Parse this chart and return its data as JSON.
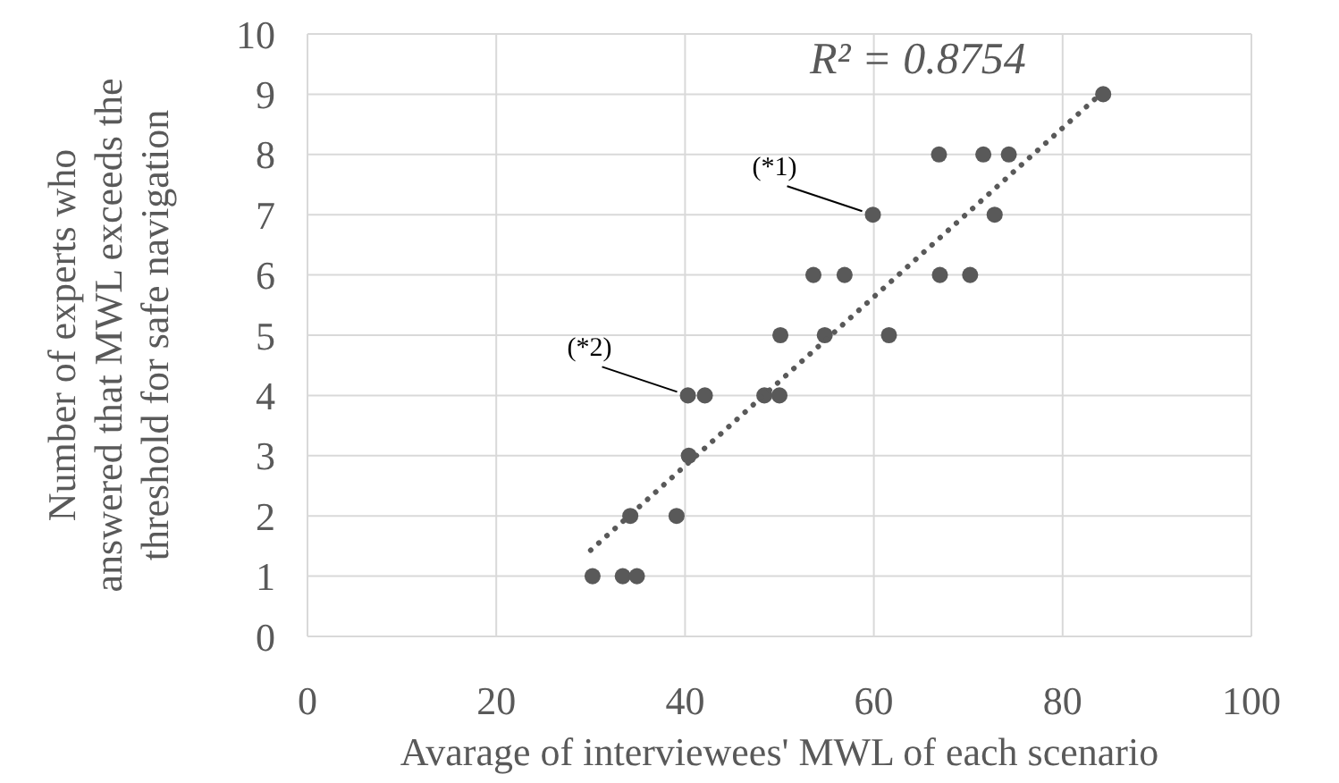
{
  "chart_data": {
    "type": "scatter",
    "xlabel": "Avarage of interviewees' MWL of each scenario",
    "ylabel": "Number of experts who answered that MWL exceeds the threshold for safe navigation",
    "xlim": [
      0,
      100
    ],
    "xticks": [
      0,
      20,
      40,
      60,
      80,
      100
    ],
    "ylim": [
      0,
      10
    ],
    "yticks": [
      0,
      1,
      2,
      3,
      4,
      5,
      6,
      7,
      8,
      9,
      10
    ],
    "grid": true,
    "marker": "circle",
    "series": [
      {
        "type": "scatter",
        "color": "#595959",
        "x": [
          30.2,
          33.4,
          34.9,
          34.2,
          39.1,
          40.4,
          40.3,
          42.1,
          48.4,
          50.0,
          50.1,
          54.8,
          61.6,
          53.6,
          56.9,
          67.0,
          70.2,
          59.9,
          72.8,
          66.9,
          71.6,
          74.3,
          84.3
        ],
        "values": [
          1,
          1,
          1,
          2,
          2,
          3,
          4,
          4,
          4,
          4,
          5,
          5,
          5,
          6,
          6,
          6,
          6,
          7,
          7,
          8,
          8,
          8,
          9
        ]
      },
      {
        "type": "line",
        "color": "#595959",
        "line_style": "dotted",
        "marker": "none",
        "x": [
          30,
          84
        ],
        "values": [
          1.43,
          9.0
        ]
      }
    ],
    "annotations": [
      {
        "text": "(*1)",
        "x": 59.9,
        "y": 7
      },
      {
        "text": "(*2)",
        "x": 40.3,
        "y": 4
      },
      "R² = 0.8754"
    ]
  }
}
